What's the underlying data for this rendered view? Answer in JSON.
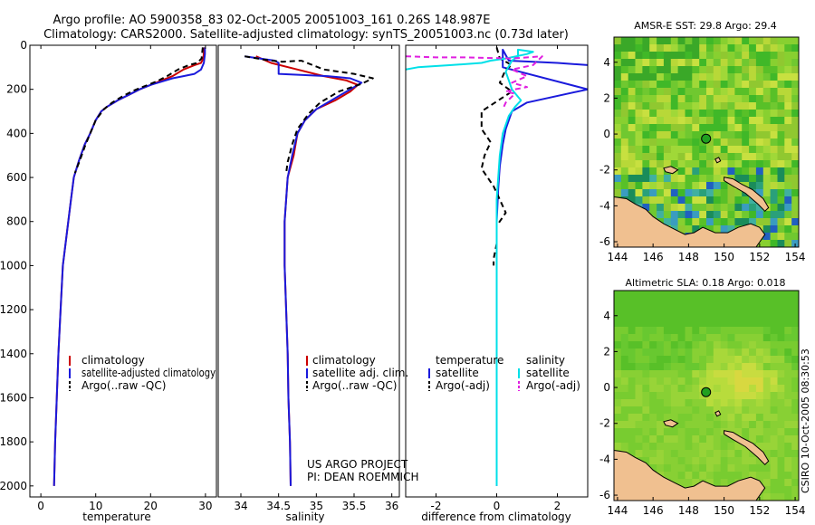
{
  "titles": {
    "line1": "Argo profile: AO 5900358_83 02-Oct-2005 20051003_161 0.26S 148.987E",
    "line2": "Climatology: CARS2000. Satellite-adjusted climatology: synTS_20051003.nc (0.73d later)"
  },
  "side_label": "CSIRO 10-Oct-2005 08:30:53",
  "colors": {
    "clim": "#cc0000",
    "sat": "#1a1adc",
    "argo": "#000000",
    "sal_sat": "#00e0e8",
    "sal_argo": "#e020e0",
    "land": "#f0c090"
  },
  "chart_data": [
    {
      "type": "line",
      "name": "temperature",
      "xlabel": "temperature",
      "xlim": [
        -2,
        32
      ],
      "ylim": [
        0,
        2050
      ],
      "xticks": [
        0,
        10,
        20,
        30
      ],
      "yticks": [
        0,
        200,
        400,
        600,
        800,
        1000,
        1200,
        1400,
        1600,
        1800,
        2000
      ],
      "legend": [
        "climatology",
        "satellite-adjusted climatology",
        "Argo(..raw -QC)"
      ],
      "series": [
        {
          "name": "climatology",
          "color": "clim",
          "dash": false,
          "points": [
            [
              29.8,
              10
            ],
            [
              29.6,
              60
            ],
            [
              29.2,
              80
            ],
            [
              28,
              90
            ],
            [
              26,
              110
            ],
            [
              24,
              140
            ],
            [
              22,
              160
            ],
            [
              20,
              180
            ],
            [
              18,
              200
            ],
            [
              16,
              225
            ],
            [
              14,
              250
            ],
            [
              12,
              280
            ],
            [
              11,
              300
            ],
            [
              10,
              340
            ],
            [
              9,
              400
            ],
            [
              8,
              450
            ],
            [
              7,
              520
            ],
            [
              6,
              600
            ],
            [
              5.5,
              700
            ],
            [
              5,
              800
            ],
            [
              4.5,
              900
            ],
            [
              4,
              1000
            ],
            [
              3.6,
              1200
            ],
            [
              3.2,
              1400
            ],
            [
              2.9,
              1600
            ],
            [
              2.6,
              1800
            ],
            [
              2.4,
              2000
            ]
          ]
        },
        {
          "name": "satellite-adjusted climatology",
          "color": "sat",
          "dash": false,
          "points": [
            [
              29.9,
              10
            ],
            [
              29.9,
              40
            ],
            [
              29.7,
              80
            ],
            [
              29.2,
              110
            ],
            [
              28,
              130
            ],
            [
              26,
              140
            ],
            [
              24,
              150
            ],
            [
              22,
              165
            ],
            [
              20,
              180
            ],
            [
              18,
              200
            ],
            [
              16,
              225
            ],
            [
              14,
              250
            ],
            [
              12,
              280
            ],
            [
              11,
              300
            ],
            [
              10,
              340
            ],
            [
              9,
              400
            ],
            [
              8,
              450
            ],
            [
              7,
              520
            ],
            [
              6,
              600
            ],
            [
              5.5,
              700
            ],
            [
              5,
              800
            ],
            [
              4.5,
              900
            ],
            [
              4,
              1000
            ],
            [
              3.6,
              1200
            ],
            [
              3.2,
              1400
            ],
            [
              2.9,
              1600
            ],
            [
              2.6,
              1800
            ],
            [
              2.4,
              2000
            ]
          ]
        },
        {
          "name": "Argo(..raw -QC)",
          "color": "argo",
          "dash": true,
          "points": [
            [
              29.5,
              10
            ],
            [
              29.3,
              60
            ],
            [
              28.5,
              80
            ],
            [
              27,
              90
            ],
            [
              25,
              110
            ],
            [
              23,
              140
            ],
            [
              21,
              165
            ],
            [
              19,
              185
            ],
            [
              17,
              205
            ],
            [
              15,
              230
            ],
            [
              13,
              260
            ],
            [
              11.5,
              290
            ],
            [
              10,
              340
            ],
            [
              9,
              400
            ],
            [
              8,
              460
            ],
            [
              7,
              530
            ],
            [
              6.2,
              580
            ]
          ]
        }
      ]
    },
    {
      "type": "line",
      "name": "salinity",
      "xlabel": "salinity",
      "xlim": [
        33.7,
        36.1
      ],
      "ylim": [
        0,
        2050
      ],
      "xticks": [
        34,
        34.5,
        35,
        35.5,
        36
      ],
      "yticks": [],
      "legend": [
        "climatology",
        "satellite adj. clim.",
        "Argo(..raw -QC)"
      ],
      "annotation": [
        "US ARGO PROJECT",
        "PI: DEAN ROEMMICH"
      ],
      "series": [
        {
          "name": "climatology",
          "color": "clim",
          "dash": false,
          "points": [
            [
              34.2,
              50
            ],
            [
              34.4,
              80
            ],
            [
              34.75,
              110
            ],
            [
              35.1,
              140
            ],
            [
              35.4,
              160
            ],
            [
              35.55,
              180
            ],
            [
              35.45,
              210
            ],
            [
              35.25,
              250
            ],
            [
              35.0,
              290
            ],
            [
              34.85,
              340
            ],
            [
              34.75,
              400
            ],
            [
              34.7,
              500
            ],
            [
              34.62,
              600
            ],
            [
              34.6,
              700
            ],
            [
              34.58,
              800
            ],
            [
              34.58,
              1000
            ],
            [
              34.6,
              1200
            ],
            [
              34.62,
              1400
            ],
            [
              34.63,
              1600
            ],
            [
              34.65,
              1800
            ],
            [
              34.66,
              2000
            ]
          ]
        },
        {
          "name": "satellite adj. clim.",
          "color": "sat",
          "dash": false,
          "points": [
            [
              34.05,
              50
            ],
            [
              34.45,
              70
            ],
            [
              34.5,
              80
            ],
            [
              34.5,
              130
            ],
            [
              35.15,
              140
            ],
            [
              35.45,
              150
            ],
            [
              35.6,
              170
            ],
            [
              35.4,
              210
            ],
            [
              35.2,
              250
            ],
            [
              35.0,
              290
            ],
            [
              34.85,
              340
            ],
            [
              34.75,
              400
            ],
            [
              34.68,
              500
            ],
            [
              34.62,
              600
            ],
            [
              34.6,
              700
            ],
            [
              34.58,
              800
            ],
            [
              34.58,
              1000
            ],
            [
              34.6,
              1200
            ],
            [
              34.62,
              1400
            ],
            [
              34.63,
              1600
            ],
            [
              34.65,
              1800
            ],
            [
              34.66,
              2000
            ]
          ]
        },
        {
          "name": "Argo(..raw -QC)",
          "color": "argo",
          "dash": true,
          "points": [
            [
              34.05,
              50
            ],
            [
              34.3,
              65
            ],
            [
              34.55,
              75
            ],
            [
              34.8,
              70
            ],
            [
              35.1,
              110
            ],
            [
              35.5,
              130
            ],
            [
              35.75,
              150
            ],
            [
              35.6,
              175
            ],
            [
              35.3,
              210
            ],
            [
              35.05,
              260
            ],
            [
              34.9,
              310
            ],
            [
              34.75,
              380
            ],
            [
              34.68,
              450
            ],
            [
              34.62,
              530
            ],
            [
              34.6,
              580
            ]
          ]
        }
      ]
    },
    {
      "type": "line",
      "name": "difference",
      "xlabel": "difference from climatology",
      "xlim": [
        -3,
        3
      ],
      "ylim": [
        0,
        2050
      ],
      "xticks": [
        -2,
        0,
        2
      ],
      "yticks": [],
      "legend_temperature": [
        "temperature",
        "satellite",
        "Argo(-adj)"
      ],
      "legend_salinity": [
        "salinity",
        "satellite",
        "Argo(-adj)"
      ],
      "series": [
        {
          "name": "temperature satellite",
          "color": "sat",
          "dash": false,
          "points": [
            [
              3,
              90
            ],
            [
              2,
              80
            ],
            [
              0.4,
              70
            ],
            [
              0.2,
              20
            ],
            [
              0.2,
              100
            ],
            [
              3,
              200
            ],
            [
              1.0,
              260
            ],
            [
              0.5,
              300
            ],
            [
              0.3,
              380
            ],
            [
              0.2,
              450
            ],
            [
              0.1,
              550
            ],
            [
              0.05,
              650
            ],
            [
              0,
              800
            ],
            [
              0,
              1000
            ],
            [
              0,
              1500
            ],
            [
              0,
              2000
            ]
          ]
        },
        {
          "name": "temperature Argo(-adj)",
          "color": "argo",
          "dash": true,
          "points": [
            [
              0,
              10
            ],
            [
              0.1,
              60
            ],
            [
              0.5,
              90
            ],
            [
              0.3,
              110
            ],
            [
              0.2,
              140
            ],
            [
              0.1,
              170
            ],
            [
              0.5,
              210
            ],
            [
              -0.5,
              300
            ],
            [
              -0.5,
              380
            ],
            [
              -0.2,
              440
            ],
            [
              -0.4,
              500
            ],
            [
              -0.5,
              560
            ],
            [
              -0.1,
              640
            ],
            [
              0.1,
              700
            ],
            [
              0.3,
              760
            ],
            [
              0,
              820
            ],
            [
              0,
              900
            ],
            [
              -0.1,
              970
            ],
            [
              -0.1,
              1000
            ]
          ]
        },
        {
          "name": "salinity satellite",
          "color": "sal_sat",
          "dash": false,
          "points": [
            [
              -3,
              110
            ],
            [
              -2.6,
              100
            ],
            [
              -1.5,
              90
            ],
            [
              -0.5,
              80
            ],
            [
              -0.2,
              70
            ],
            [
              0.3,
              60
            ],
            [
              1.0,
              40
            ],
            [
              1.2,
              30
            ],
            [
              0.7,
              20
            ],
            [
              0.7,
              50
            ],
            [
              0.5,
              70
            ],
            [
              0.3,
              120
            ],
            [
              0.5,
              200
            ],
            [
              0.8,
              250
            ],
            [
              0.6,
              280
            ],
            [
              0.4,
              320
            ],
            [
              0.2,
              400
            ],
            [
              0.1,
              500
            ],
            [
              0.05,
              600
            ],
            [
              0,
              700
            ],
            [
              0,
              900
            ],
            [
              0,
              1200
            ],
            [
              0,
              1600
            ],
            [
              0,
              2000
            ]
          ]
        },
        {
          "name": "salinity Argo(-adj)",
          "color": "sal_argo",
          "dash": true,
          "points": [
            [
              -3,
              50
            ],
            [
              -2,
              55
            ],
            [
              -1,
              55
            ],
            [
              0.5,
              60
            ],
            [
              1.5,
              50
            ],
            [
              1.2,
              90
            ],
            [
              0.5,
              110
            ],
            [
              1.0,
              140
            ],
            [
              0.5,
              170
            ],
            [
              1.0,
              190
            ],
            [
              0.6,
              200
            ],
            [
              0.3,
              210
            ],
            [
              0.6,
              220
            ],
            [
              0.3,
              260
            ],
            [
              0.2,
              290
            ]
          ]
        }
      ]
    },
    {
      "type": "heatmap",
      "name": "sst-map",
      "title": "AMSR-E SST: 29.8 Argo: 29.4",
      "xlim": [
        143.8,
        154.2
      ],
      "ylim": [
        -6.3,
        5.4
      ],
      "xticks": [
        144,
        146,
        148,
        150,
        152,
        154
      ],
      "yticks": [
        4,
        2,
        0,
        -2,
        -4,
        -6
      ],
      "argo_position": [
        148.987,
        -0.26
      ]
    },
    {
      "type": "heatmap",
      "name": "sla-map",
      "title": "Altimetric SLA: 0.18 Argo: 0.018",
      "xlim": [
        143.8,
        154.2
      ],
      "ylim": [
        -6.3,
        5.4
      ],
      "xticks": [
        144,
        146,
        148,
        150,
        152,
        154
      ],
      "yticks": [
        4,
        2,
        0,
        -2,
        -4,
        -6
      ],
      "argo_position": [
        148.987,
        -0.26
      ]
    }
  ]
}
